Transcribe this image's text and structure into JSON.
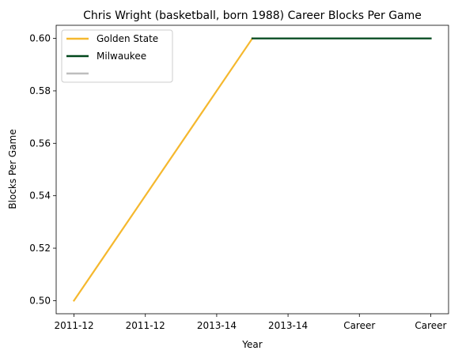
{
  "chart_data": {
    "type": "line",
    "title": "Chris Wright (basketball, born 1988) Career Blocks Per Game",
    "xlabel": "Year",
    "ylabel": "Blocks Per Game",
    "categories": [
      "2011-12",
      "2011-12",
      "2013-14",
      "2013-14",
      "Career",
      "Career"
    ],
    "yticks": [
      "0.50",
      "0.52",
      "0.54",
      "0.56",
      "0.58",
      "0.60"
    ],
    "ytick_values": [
      0.5,
      0.52,
      0.54,
      0.56,
      0.58,
      0.6
    ],
    "ylim": [
      0.495,
      0.605
    ],
    "xlim": [
      -0.25,
      5.25
    ],
    "grid": false,
    "legend_position": "upper-left",
    "series": [
      {
        "name": "Golden State",
        "color": "#F5B82E",
        "x": [
          0,
          2.5
        ],
        "values": [
          0.5,
          0.6
        ]
      },
      {
        "name": "Milwaukee",
        "color": "#00471B",
        "x": [
          2.5,
          5
        ],
        "values": [
          0.6,
          0.6
        ]
      },
      {
        "name": "",
        "color": "#BEBEBE",
        "x": [],
        "values": []
      }
    ]
  }
}
